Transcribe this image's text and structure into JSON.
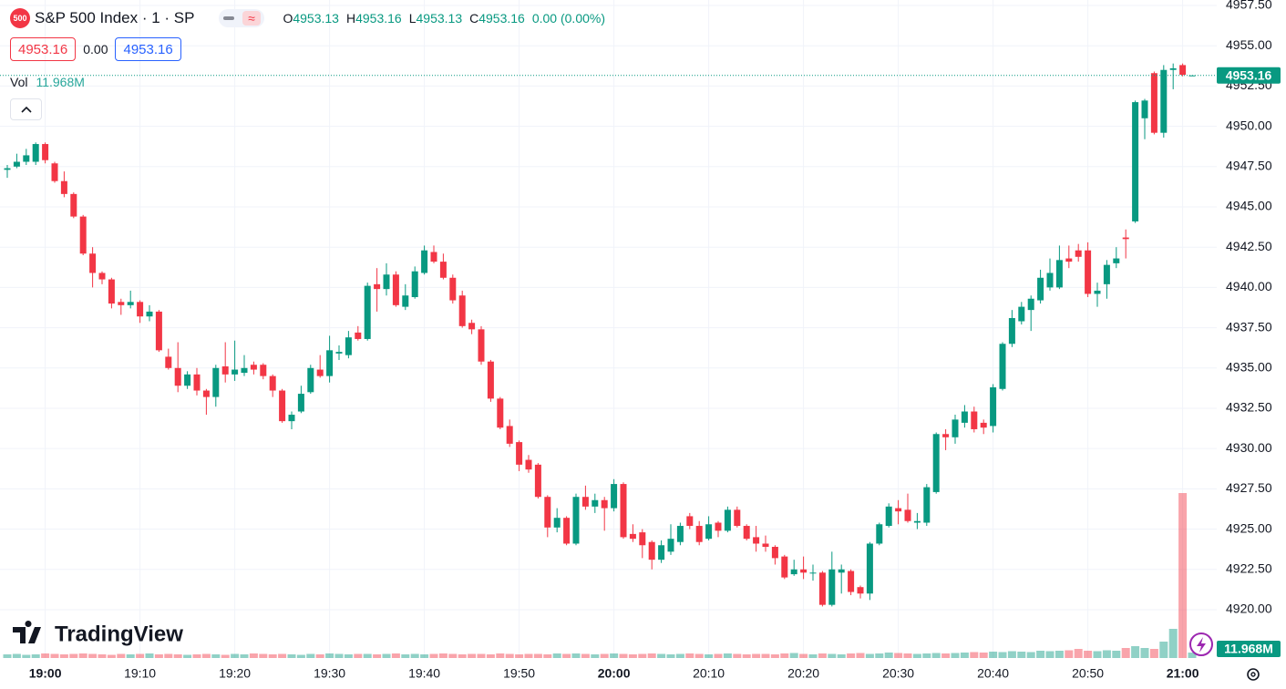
{
  "chart_data": {
    "type": "candlestick",
    "header": {
      "symbol_icon": "500",
      "title": "S&P 500 Index · 1 · SP",
      "ohlc": [
        {
          "key": "O",
          "value": 4953.13
        },
        {
          "key": "H",
          "value": 4953.16
        },
        {
          "key": "L",
          "value": 4953.13
        },
        {
          "key": "C",
          "value": 4953.16
        }
      ],
      "change": "0.00 (0.00%)",
      "bid": "4953.16",
      "spread": "0.00",
      "ask": "4953.16",
      "vol_title": "Vol",
      "volume_label": "11.968M"
    },
    "logo": "TradingView",
    "up_color": "#089981",
    "down_color": "#f23645",
    "grid": true,
    "ylim": [
      4917.0,
      4957.84
    ],
    "yticks": [
      {
        "value": 4920,
        "label": "4920.00"
      },
      {
        "value": 4922.5,
        "label": "4922.50"
      },
      {
        "value": 4925,
        "label": "4925.00"
      },
      {
        "value": 4927.5,
        "label": "4927.50"
      },
      {
        "value": 4930,
        "label": "4930.00"
      },
      {
        "value": 4932.5,
        "label": "4932.50"
      },
      {
        "value": 4935,
        "label": "4935.00"
      },
      {
        "value": 4937.5,
        "label": "4937.50"
      },
      {
        "value": 4940,
        "label": "4940.00"
      },
      {
        "value": 4942.5,
        "label": "4942.50"
      },
      {
        "value": 4945,
        "label": "4945.00"
      },
      {
        "value": 4947.5,
        "label": "4947.50"
      },
      {
        "value": 4950,
        "label": "4950.00"
      },
      {
        "value": 4952.5,
        "label": "4952.50"
      },
      {
        "value": 4955,
        "label": "4955.00"
      },
      {
        "value": 4957.5,
        "label": "4957.50"
      }
    ],
    "categories": [
      null,
      null,
      null,
      null,
      "19:00",
      null,
      null,
      null,
      null,
      null,
      null,
      null,
      null,
      null,
      "19:10",
      null,
      null,
      null,
      null,
      null,
      null,
      null,
      null,
      null,
      "19:20",
      null,
      null,
      null,
      null,
      null,
      null,
      null,
      null,
      null,
      "19:30",
      null,
      null,
      null,
      null,
      null,
      null,
      null,
      null,
      null,
      "19:40",
      null,
      null,
      null,
      null,
      null,
      null,
      null,
      null,
      null,
      "19:50",
      null,
      null,
      null,
      null,
      null,
      null,
      null,
      null,
      null,
      "20:00",
      null,
      null,
      null,
      null,
      null,
      null,
      null,
      null,
      null,
      "20:10",
      null,
      null,
      null,
      null,
      null,
      null,
      null,
      null,
      null,
      "20:20",
      null,
      null,
      null,
      null,
      null,
      null,
      null,
      null,
      null,
      "20:30",
      null,
      null,
      null,
      null,
      null,
      null,
      null,
      null,
      null,
      "20:40",
      null,
      null,
      null,
      null,
      null,
      null,
      null,
      null,
      null,
      "20:50",
      null,
      null,
      null,
      null,
      null,
      null,
      null,
      null,
      null,
      "21:00",
      null
    ],
    "open": [
      4947.3,
      4947.5,
      4947.8,
      4947.8,
      4948.9,
      4947.7,
      4946.6,
      4945.8,
      4944.4,
      4942.1,
      4940.9,
      4940.5,
      4939.1,
      4938.9,
      4939.1,
      4938.2,
      4938.5,
      4935.7,
      4935.0,
      4933.9,
      4934.6,
      4933.6,
      4933.2,
      4935.1,
      4934.6,
      4934.7,
      4935.2,
      4935.2,
      4934.5,
      4933.6,
      4931.7,
      4932.3,
      4933.5,
      4934.9,
      4934.5,
      4935.9,
      4935.8,
      4937.2,
      4936.8,
      4940.2,
      4939.9,
      4940.8,
      4938.8,
      4939.4,
      4940.9,
      4942.2,
      4941.6,
      4940.6,
      4939.5,
      4937.8,
      4937.4,
      4935.4,
      4933.1,
      4931.4,
      4930.4,
      4929.3,
      4929.0,
      4927.0,
      4925.1,
      4925.7,
      4924.1,
      4927.0,
      4926.4,
      4926.8,
      4926.3,
      4927.8,
      4924.7,
      4924.8,
      4924.2,
      4923.1,
      4923.6,
      4924.2,
      4925.8,
      4925.2,
      4924.4,
      4925.4,
      4924.9,
      4926.2,
      4925.2,
      4924.5,
      4924.1,
      4923.9,
      4923.3,
      4922.2,
      4922.5,
      4922.3,
      4922.3,
      4920.3,
      4922.3,
      4922.4,
      4921.4,
      4921.0,
      4924.1,
      4925.2,
      4926.3,
      4926.2,
      4925.4,
      4925.4,
      4927.3,
      4930.9,
      4930.7,
      4931.6,
      4932.3,
      4931.6,
      4931.4,
      4933.7,
      4936.5,
      4937.9,
      4938.6,
      4939.2,
      4940.0,
      4940.0,
      4941.8,
      4942.3,
      4942.3,
      4939.6,
      4940.2,
      4941.5,
      4943.1,
      4944.1,
      4950.5,
      4953.3,
      4949.6,
      4953.5,
      4953.8,
      4953.13
    ],
    "high": [
      4947.6,
      4948.3,
      4948.6,
      4949.0,
      4949.0,
      4947.8,
      4947.2,
      4945.9,
      4944.5,
      4942.5,
      4941.0,
      4940.6,
      4939.3,
      4939.8,
      4939.2,
      4938.9,
      4938.6,
      4936.2,
      4936.6,
      4934.8,
      4935.0,
      4933.7,
      4935.2,
      4936.6,
      4936.7,
      4935.8,
      4935.4,
      4935.3,
      4934.6,
      4933.7,
      4932.3,
      4933.9,
      4935.2,
      4935.8,
      4937.0,
      4936.4,
      4937.3,
      4937.6,
      4940.3,
      4941.2,
      4941.5,
      4941.0,
      4940.2,
      4941.3,
      4942.6,
      4942.6,
      4942.1,
      4940.8,
      4939.8,
      4938.0,
      4937.6,
      4935.5,
      4933.2,
      4931.8,
      4930.5,
      4929.6,
      4929.1,
      4927.1,
      4926.3,
      4925.8,
      4927.2,
      4927.7,
      4927.2,
      4927.0,
      4928.1,
      4927.9,
      4925.3,
      4925.0,
      4924.3,
      4924.3,
      4925.3,
      4925.4,
      4926.0,
      4925.5,
      4925.8,
      4925.5,
      4926.4,
      4926.4,
      4925.3,
      4925.2,
      4924.6,
      4924.0,
      4923.4,
      4923.1,
      4923.3,
      4922.8,
      4922.4,
      4923.6,
      4922.8,
      4922.5,
      4921.5,
      4924.2,
      4925.4,
      4926.6,
      4926.8,
      4927.2,
      4926.0,
      4927.8,
      4931.0,
      4931.2,
      4932.1,
      4932.7,
      4932.6,
      4931.8,
      4934.0,
      4936.6,
      4938.6,
      4939.1,
      4939.5,
      4941.1,
      4941.8,
      4942.6,
      4942.6,
      4942.7,
      4942.8,
      4940.3,
      4941.7,
      4942.5,
      4943.6,
      4951.6,
      4951.7,
      4953.4,
      4953.8,
      4953.9,
      4953.9,
      4953.16
    ],
    "low": [
      4946.8,
      4947.4,
      4947.6,
      4947.6,
      4947.7,
      4946.5,
      4945.6,
      4944.3,
      4942.0,
      4940.0,
      4940.2,
      4938.7,
      4938.3,
      4938.7,
      4937.8,
      4937.9,
      4936.0,
      4934.9,
      4933.5,
      4933.7,
      4933.3,
      4932.1,
      4932.6,
      4934.1,
      4934.2,
      4934.5,
      4934.6,
      4934.3,
      4933.2,
      4931.6,
      4931.2,
      4932.2,
      4933.4,
      4934.4,
      4934.1,
      4935.5,
      4935.6,
      4936.7,
      4936.7,
      4938.5,
      4939.5,
      4938.8,
      4938.6,
      4939.3,
      4940.8,
      4941.5,
      4940.5,
      4939.0,
      4937.5,
      4937.1,
      4935.2,
      4932.9,
      4931.2,
      4930.1,
      4928.6,
      4928.5,
      4926.9,
      4924.5,
      4924.8,
      4924.0,
      4924.0,
      4926.2,
      4926.0,
      4924.9,
      4926.1,
      4924.4,
      4924.2,
      4923.2,
      4922.5,
      4922.9,
      4923.4,
      4924.0,
      4925.0,
      4924.0,
      4924.3,
      4924.5,
      4924.8,
      4925.1,
      4924.3,
      4923.6,
      4923.6,
      4922.8,
      4921.9,
      4922.1,
      4921.9,
      4921.8,
      4920.2,
      4920.2,
      4921.0,
      4920.9,
      4920.7,
      4920.6,
      4924.0,
      4925.1,
      4925.3,
      4925.4,
      4925.0,
      4925.2,
      4927.2,
      4929.9,
      4930.3,
      4931.3,
      4931.0,
      4930.9,
      4931.0,
      4933.6,
      4936.3,
      4937.7,
      4937.3,
      4939.0,
      4939.8,
      4939.9,
      4941.2,
      4941.6,
      4939.4,
      4938.8,
      4939.3,
      4941.2,
      4941.8,
      4944.0,
      4949.2,
      4949.5,
      4949.3,
      4952.3,
      4953.1,
      4953.13
    ],
    "close": [
      4947.4,
      4947.8,
      4948.2,
      4948.9,
      4947.9,
      4946.6,
      4945.8,
      4944.4,
      4942.1,
      4940.9,
      4940.5,
      4939.0,
      4938.9,
      4939.1,
      4938.2,
      4938.5,
      4936.1,
      4935.0,
      4933.9,
      4934.6,
      4933.6,
      4933.2,
      4935.0,
      4934.6,
      4934.9,
      4935.0,
      4934.9,
      4934.5,
      4933.6,
      4931.7,
      4932.1,
      4933.4,
      4935.0,
      4934.5,
      4936.1,
      4936.0,
      4936.9,
      4936.8,
      4940.1,
      4939.9,
      4940.8,
      4938.9,
      4939.5,
      4941.0,
      4942.3,
      4941.6,
      4940.6,
      4939.2,
      4937.6,
      4937.4,
      4935.4,
      4933.1,
      4931.3,
      4930.3,
      4929.0,
      4928.7,
      4927.0,
      4925.1,
      4925.7,
      4924.1,
      4927.0,
      4926.4,
      4926.8,
      4926.3,
      4927.8,
      4924.5,
      4924.4,
      4924.0,
      4923.1,
      4924.0,
      4924.4,
      4925.2,
      4925.2,
      4924.2,
      4925.3,
      4924.9,
      4926.2,
      4925.2,
      4924.4,
      4924.1,
      4923.9,
      4923.2,
      4922.0,
      4922.5,
      4922.3,
      4922.3,
      4920.3,
      4922.5,
      4922.5,
      4921.1,
      4921.0,
      4924.1,
      4925.3,
      4926.4,
      4926.1,
      4925.5,
      4925.5,
      4927.6,
      4930.9,
      4930.7,
      4931.8,
      4932.3,
      4931.2,
      4931.3,
      4933.8,
      4936.5,
      4938.1,
      4938.8,
      4939.3,
      4940.6,
      4940.9,
      4941.7,
      4941.6,
      4941.9,
      4939.6,
      4939.8,
      4941.4,
      4941.8,
      4943.0,
      4951.5,
      4951.6,
      4949.6,
      4953.5,
      4953.6,
      4953.2,
      4953.16
    ],
    "volume": [
      8,
      9,
      7,
      8,
      10,
      9,
      8,
      9,
      10,
      9,
      8,
      7,
      9,
      8,
      9,
      10,
      8,
      9,
      8,
      7,
      8,
      9,
      8,
      7,
      9,
      8,
      10,
      9,
      8,
      9,
      8,
      7,
      9,
      8,
      10,
      9,
      8,
      9,
      9,
      8,
      9,
      10,
      8,
      9,
      8,
      9,
      10,
      9,
      8,
      9,
      9,
      8,
      10,
      9,
      8,
      9,
      9,
      8,
      10,
      9,
      10,
      9,
      8,
      9,
      10,
      9,
      8,
      9,
      10,
      9,
      8,
      9,
      10,
      9,
      8,
      9,
      10,
      9,
      8,
      9,
      9,
      8,
      10,
      11,
      9,
      8,
      10,
      9,
      8,
      10,
      11,
      9,
      10,
      12,
      11,
      10,
      9,
      10,
      11,
      10,
      11,
      12,
      13,
      12,
      14,
      13,
      15,
      14,
      13,
      16,
      15,
      16,
      17,
      20,
      16,
      15,
      17,
      16,
      22,
      26,
      22,
      20,
      36,
      64,
      362,
      11.968
    ]
  }
}
